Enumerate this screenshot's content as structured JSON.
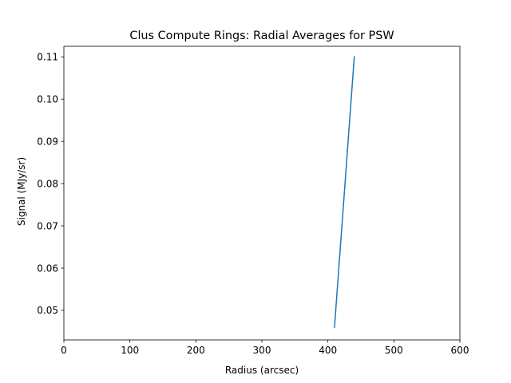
{
  "chart_data": {
    "type": "line",
    "title": "Clus Compute Rings: Radial Averages for PSW",
    "xlabel": "Radius (arcsec)",
    "ylabel": "Signal (MJy/sr)",
    "xlim": [
      0,
      600
    ],
    "ylim": [
      0.043,
      0.1125
    ],
    "xticks": [
      0,
      100,
      200,
      300,
      400,
      500,
      600
    ],
    "xtick_labels": [
      "0",
      "100",
      "200",
      "300",
      "400",
      "500",
      "600"
    ],
    "yticks": [
      0.05,
      0.06,
      0.07,
      0.08,
      0.09,
      0.1,
      0.11
    ],
    "ytick_labels": [
      "0.05",
      "0.06",
      "0.07",
      "0.08",
      "0.09",
      "0.10",
      "0.11"
    ],
    "grid": false,
    "series": [
      {
        "x": [
          410,
          440
        ],
        "y": [
          0.046,
          0.11
        ],
        "color": "#1f77b4"
      }
    ]
  }
}
